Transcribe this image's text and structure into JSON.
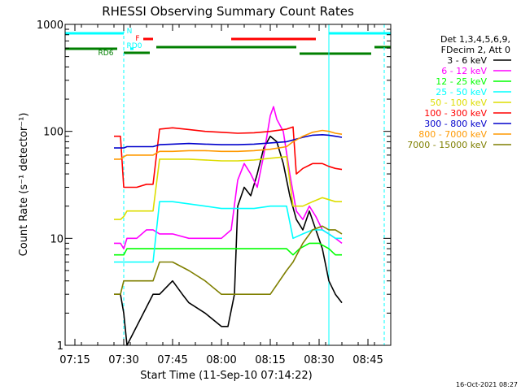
{
  "chart_data": {
    "type": "line",
    "title": "RHESSI Observing Summary Count Rates",
    "xlabel": "Start Time (11-Sep-10 07:14:22)",
    "ylabel": "Count Rate (s⁻¹ detector⁻¹)",
    "y_scale": "log",
    "ylim": [
      1,
      1000
    ],
    "xlim": [
      "07:12",
      "08:52"
    ],
    "x_ticks": [
      "07:15",
      "07:30",
      "07:45",
      "08:00",
      "08:15",
      "08:30",
      "08:45"
    ],
    "y_ticks": [
      "1",
      "10",
      "100",
      "1000"
    ],
    "footer_date": "16-Oct-2021 08:27",
    "legend": {
      "header": [
        "Det 1,3,4,5,6,9,",
        "FDecim 2, Att 0"
      ],
      "placement": "right"
    },
    "flags": {
      "N": {
        "label": "N",
        "color": "#00ffff",
        "intervals": [
          [
            "07:12",
            "07:30"
          ],
          [
            "08:33",
            "08:52"
          ]
        ]
      },
      "F": {
        "label": "F",
        "color": "#ff0000",
        "intervals": [
          [
            "07:36",
            "07:39"
          ],
          [
            "08:03",
            "08:29"
          ]
        ]
      },
      "RD0": {
        "label": "RD0",
        "color": "#00ffff",
        "intervals": [
          [
            "07:32",
            "07:33"
          ]
        ]
      },
      "RD6": {
        "label": "RD6",
        "color": "#007f00",
        "intervals": [
          [
            "07:12",
            "07:28"
          ],
          [
            "07:30",
            "07:38"
          ],
          [
            "07:40",
            "08:23"
          ],
          [
            "08:24",
            "08:46"
          ],
          [
            "08:47",
            "08:52"
          ]
        ]
      }
    },
    "night_lines": {
      "solid": [
        "07:12",
        "08:33"
      ],
      "dashed": [
        "07:30",
        "08:50"
      ],
      "color": "#00ffff"
    },
    "series": [
      {
        "name": "3 - 6 keV",
        "color": "#000000",
        "points": [
          [
            "07:27",
            3
          ],
          [
            "07:29",
            3
          ],
          [
            "07:30",
            2
          ],
          [
            "07:31",
            1
          ],
          [
            "07:39",
            3
          ],
          [
            "07:41",
            3
          ],
          [
            "07:45",
            4
          ],
          [
            "07:48",
            3
          ],
          [
            "07:50",
            2.5
          ],
          [
            "07:55",
            2
          ],
          [
            "08:00",
            1.5
          ],
          [
            "08:02",
            1.5
          ],
          [
            "08:04",
            3
          ],
          [
            "08:05",
            20
          ],
          [
            "08:07",
            30
          ],
          [
            "08:09",
            25
          ],
          [
            "08:11",
            40
          ],
          [
            "08:13",
            70
          ],
          [
            "08:15",
            90
          ],
          [
            "08:17",
            80
          ],
          [
            "08:19",
            50
          ],
          [
            "08:21",
            25
          ],
          [
            "08:23",
            15
          ],
          [
            "08:25",
            12
          ],
          [
            "08:27",
            18
          ],
          [
            "08:29",
            12
          ],
          [
            "08:31",
            8
          ],
          [
            "08:33",
            4
          ],
          [
            "08:35",
            3
          ],
          [
            "08:37",
            2.5
          ]
        ]
      },
      {
        "name": "6 - 12 keV",
        "color": "#ff00ff",
        "points": [
          [
            "07:27",
            9
          ],
          [
            "07:29",
            9
          ],
          [
            "07:30",
            8
          ],
          [
            "07:31",
            10
          ],
          [
            "07:34",
            10
          ],
          [
            "07:37",
            12
          ],
          [
            "07:39",
            12
          ],
          [
            "07:41",
            11
          ],
          [
            "07:45",
            11
          ],
          [
            "07:50",
            10
          ],
          [
            "07:55",
            10
          ],
          [
            "08:00",
            10
          ],
          [
            "08:03",
            12
          ],
          [
            "08:05",
            35
          ],
          [
            "08:07",
            50
          ],
          [
            "08:09",
            40
          ],
          [
            "08:11",
            30
          ],
          [
            "08:13",
            60
          ],
          [
            "08:15",
            140
          ],
          [
            "08:16",
            170
          ],
          [
            "08:17",
            130
          ],
          [
            "08:19",
            100
          ],
          [
            "08:21",
            40
          ],
          [
            "08:23",
            18
          ],
          [
            "08:25",
            15
          ],
          [
            "08:27",
            20
          ],
          [
            "08:29",
            16
          ],
          [
            "08:31",
            12
          ],
          [
            "08:33",
            11
          ],
          [
            "08:35",
            10
          ],
          [
            "08:37",
            9
          ]
        ]
      },
      {
        "name": "12 - 25 keV",
        "color": "#00ff00",
        "points": [
          [
            "07:27",
            7
          ],
          [
            "07:29",
            7
          ],
          [
            "07:30",
            7
          ],
          [
            "07:31",
            8
          ],
          [
            "07:34",
            8
          ],
          [
            "07:37",
            8
          ],
          [
            "07:39",
            8
          ],
          [
            "07:41",
            8
          ],
          [
            "07:45",
            8
          ],
          [
            "07:50",
            8
          ],
          [
            "07:55",
            8
          ],
          [
            "08:00",
            8
          ],
          [
            "08:05",
            8
          ],
          [
            "08:10",
            8
          ],
          [
            "08:15",
            8
          ],
          [
            "08:20",
            8
          ],
          [
            "08:22",
            7
          ],
          [
            "08:24",
            8
          ],
          [
            "08:27",
            9
          ],
          [
            "08:30",
            9
          ],
          [
            "08:33",
            8
          ],
          [
            "08:35",
            7
          ],
          [
            "08:37",
            7
          ]
        ]
      },
      {
        "name": "25 - 50 keV",
        "color": "#00ffff",
        "points": [
          [
            "07:27",
            6
          ],
          [
            "07:29",
            6
          ],
          [
            "07:30",
            6
          ],
          [
            "07:31",
            6
          ],
          [
            "07:34",
            6
          ],
          [
            "07:37",
            6
          ],
          [
            "07:39",
            6
          ],
          [
            "07:41",
            22
          ],
          [
            "07:45",
            22
          ],
          [
            "07:50",
            21
          ],
          [
            "07:55",
            20
          ],
          [
            "08:00",
            19
          ],
          [
            "08:05",
            19
          ],
          [
            "08:10",
            19
          ],
          [
            "08:15",
            20
          ],
          [
            "08:20",
            20
          ],
          [
            "08:22",
            10
          ],
          [
            "08:25",
            11
          ],
          [
            "08:28",
            12
          ],
          [
            "08:31",
            12
          ],
          [
            "08:33",
            11
          ],
          [
            "08:35",
            10
          ],
          [
            "08:37",
            10
          ]
        ]
      },
      {
        "name": "50 - 100 keV",
        "color": "#dddd00",
        "points": [
          [
            "07:27",
            15
          ],
          [
            "07:29",
            15
          ],
          [
            "07:30",
            16
          ],
          [
            "07:31",
            18
          ],
          [
            "07:34",
            18
          ],
          [
            "07:37",
            18
          ],
          [
            "07:39",
            18
          ],
          [
            "07:41",
            55
          ],
          [
            "07:45",
            55
          ],
          [
            "07:50",
            55
          ],
          [
            "07:55",
            54
          ],
          [
            "08:00",
            53
          ],
          [
            "08:05",
            53
          ],
          [
            "08:10",
            54
          ],
          [
            "08:15",
            56
          ],
          [
            "08:20",
            58
          ],
          [
            "08:22",
            20
          ],
          [
            "08:25",
            20
          ],
          [
            "08:28",
            22
          ],
          [
            "08:31",
            24
          ],
          [
            "08:33",
            23
          ],
          [
            "08:35",
            22
          ],
          [
            "08:37",
            22
          ]
        ]
      },
      {
        "name": "100 - 300 keV",
        "color": "#ff0000",
        "points": [
          [
            "07:27",
            90
          ],
          [
            "07:29",
            90
          ],
          [
            "07:30",
            30
          ],
          [
            "07:31",
            30
          ],
          [
            "07:34",
            30
          ],
          [
            "07:37",
            32
          ],
          [
            "07:39",
            32
          ],
          [
            "07:41",
            105
          ],
          [
            "07:45",
            108
          ],
          [
            "07:50",
            104
          ],
          [
            "07:55",
            100
          ],
          [
            "08:00",
            98
          ],
          [
            "08:05",
            96
          ],
          [
            "08:10",
            97
          ],
          [
            "08:15",
            100
          ],
          [
            "08:20",
            105
          ],
          [
            "08:22",
            110
          ],
          [
            "08:23",
            40
          ],
          [
            "08:25",
            45
          ],
          [
            "08:28",
            50
          ],
          [
            "08:31",
            50
          ],
          [
            "08:33",
            47
          ],
          [
            "08:35",
            45
          ],
          [
            "08:37",
            44
          ]
        ]
      },
      {
        "name": "300 - 800 keV",
        "color": "#0000cc",
        "points": [
          [
            "07:27",
            70
          ],
          [
            "07:29",
            70
          ],
          [
            "07:30",
            70
          ],
          [
            "07:31",
            72
          ],
          [
            "07:34",
            72
          ],
          [
            "07:37",
            72
          ],
          [
            "07:39",
            72
          ],
          [
            "07:41",
            75
          ],
          [
            "07:45",
            76
          ],
          [
            "07:50",
            77
          ],
          [
            "07:55",
            76
          ],
          [
            "08:00",
            75
          ],
          [
            "08:05",
            75
          ],
          [
            "08:10",
            76
          ],
          [
            "08:15",
            78
          ],
          [
            "08:20",
            80
          ],
          [
            "08:22",
            83
          ],
          [
            "08:25",
            88
          ],
          [
            "08:28",
            92
          ],
          [
            "08:31",
            93
          ],
          [
            "08:33",
            92
          ],
          [
            "08:35",
            90
          ],
          [
            "08:37",
            88
          ]
        ]
      },
      {
        "name": "800 - 7000 keV",
        "color": "#ff9900",
        "points": [
          [
            "07:27",
            55
          ],
          [
            "07:29",
            55
          ],
          [
            "07:30",
            58
          ],
          [
            "07:31",
            60
          ],
          [
            "07:34",
            60
          ],
          [
            "07:37",
            60
          ],
          [
            "07:39",
            60
          ],
          [
            "07:41",
            65
          ],
          [
            "07:45",
            65
          ],
          [
            "07:50",
            66
          ],
          [
            "07:55",
            66
          ],
          [
            "08:00",
            65
          ],
          [
            "08:05",
            65
          ],
          [
            "08:10",
            66
          ],
          [
            "08:15",
            68
          ],
          [
            "08:20",
            72
          ],
          [
            "08:22",
            80
          ],
          [
            "08:25",
            90
          ],
          [
            "08:28",
            98
          ],
          [
            "08:31",
            102
          ],
          [
            "08:33",
            100
          ],
          [
            "08:35",
            96
          ],
          [
            "08:37",
            94
          ]
        ]
      },
      {
        "name": "7000 - 15000 keV",
        "color": "#7f7f00",
        "points": [
          [
            "07:27",
            3
          ],
          [
            "07:29",
            3
          ],
          [
            "07:30",
            4
          ],
          [
            "07:31",
            4
          ],
          [
            "07:34",
            4
          ],
          [
            "07:37",
            4
          ],
          [
            "07:39",
            4
          ],
          [
            "07:41",
            6
          ],
          [
            "07:45",
            6
          ],
          [
            "07:50",
            5
          ],
          [
            "07:55",
            4
          ],
          [
            "08:00",
            3
          ],
          [
            "08:05",
            3
          ],
          [
            "08:10",
            3
          ],
          [
            "08:15",
            3
          ],
          [
            "08:20",
            5
          ],
          [
            "08:22",
            6
          ],
          [
            "08:25",
            9
          ],
          [
            "08:28",
            12
          ],
          [
            "08:31",
            13
          ],
          [
            "08:33",
            12
          ],
          [
            "08:35",
            12
          ],
          [
            "08:37",
            11
          ]
        ]
      }
    ]
  }
}
